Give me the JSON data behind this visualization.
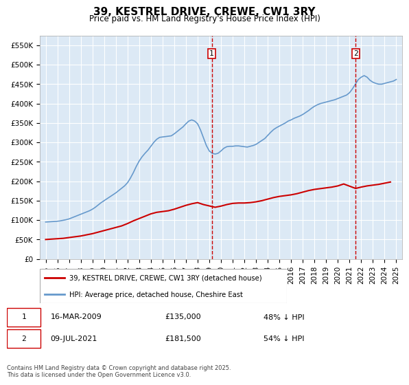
{
  "title": "39, KESTREL DRIVE, CREWE, CW1 3RY",
  "subtitle": "Price paid vs. HM Land Registry's House Price Index (HPI)",
  "ylabel": "",
  "xlabel": "",
  "ylim": [
    0,
    575000
  ],
  "yticks": [
    0,
    50000,
    100000,
    150000,
    200000,
    250000,
    300000,
    350000,
    400000,
    450000,
    500000,
    550000
  ],
  "ytick_labels": [
    "£0",
    "£50K",
    "£100K",
    "£150K",
    "£200K",
    "£250K",
    "£300K",
    "£350K",
    "£400K",
    "£450K",
    "£500K",
    "£550K"
  ],
  "background_color": "#ffffff",
  "plot_bg_color": "#dce9f5",
  "grid_color": "#ffffff",
  "legend1_label": "39, KESTREL DRIVE, CREWE, CW1 3RY (detached house)",
  "legend2_label": "HPI: Average price, detached house, Cheshire East",
  "red_line_color": "#cc0000",
  "blue_line_color": "#6699cc",
  "marker1_date_x": 2009.21,
  "marker1_label": "16-MAR-2009",
  "marker1_price": "£135,000",
  "marker1_hpi": "48% ↓ HPI",
  "marker2_date_x": 2021.52,
  "marker2_label": "09-JUL-2021",
  "marker2_price": "£181,500",
  "marker2_hpi": "54% ↓ HPI",
  "footer": "Contains HM Land Registry data © Crown copyright and database right 2025.\nThis data is licensed under the Open Government Licence v3.0.",
  "hpi_years": [
    1995,
    1995.25,
    1995.5,
    1995.75,
    1996,
    1996.25,
    1996.5,
    1996.75,
    1997,
    1997.25,
    1997.5,
    1997.75,
    1998,
    1998.25,
    1998.5,
    1998.75,
    1999,
    1999.25,
    1999.5,
    1999.75,
    2000,
    2000.25,
    2000.5,
    2000.75,
    2001,
    2001.25,
    2001.5,
    2001.75,
    2002,
    2002.25,
    2002.5,
    2002.75,
    2003,
    2003.25,
    2003.5,
    2003.75,
    2004,
    2004.25,
    2004.5,
    2004.75,
    2005,
    2005.25,
    2005.5,
    2005.75,
    2006,
    2006.25,
    2006.5,
    2006.75,
    2007,
    2007.25,
    2007.5,
    2007.75,
    2008,
    2008.25,
    2008.5,
    2008.75,
    2009,
    2009.25,
    2009.5,
    2009.75,
    2010,
    2010.25,
    2010.5,
    2010.75,
    2011,
    2011.25,
    2011.5,
    2011.75,
    2012,
    2012.25,
    2012.5,
    2012.75,
    2013,
    2013.25,
    2013.5,
    2013.75,
    2014,
    2014.25,
    2014.5,
    2014.75,
    2015,
    2015.25,
    2015.5,
    2015.75,
    2016,
    2016.25,
    2016.5,
    2016.75,
    2017,
    2017.25,
    2017.5,
    2017.75,
    2018,
    2018.25,
    2018.5,
    2018.75,
    2019,
    2019.25,
    2019.5,
    2019.75,
    2020,
    2020.25,
    2020.5,
    2020.75,
    2021,
    2021.25,
    2021.5,
    2021.75,
    2022,
    2022.25,
    2022.5,
    2022.75,
    2023,
    2023.25,
    2023.5,
    2023.75,
    2024,
    2024.25,
    2024.5,
    2024.75,
    2025
  ],
  "hpi_values": [
    95000,
    95500,
    96000,
    96500,
    97000,
    98000,
    99500,
    101000,
    103000,
    106000,
    109000,
    112000,
    115000,
    118000,
    121000,
    124000,
    128000,
    133000,
    139000,
    145000,
    150000,
    155000,
    160000,
    165000,
    170000,
    176000,
    182000,
    188000,
    196000,
    208000,
    222000,
    238000,
    252000,
    263000,
    272000,
    280000,
    290000,
    300000,
    308000,
    313000,
    314000,
    315000,
    316000,
    317000,
    322000,
    328000,
    334000,
    340000,
    348000,
    355000,
    358000,
    355000,
    348000,
    332000,
    312000,
    292000,
    278000,
    272000,
    270000,
    272000,
    278000,
    285000,
    289000,
    290000,
    290000,
    291000,
    291000,
    290000,
    289000,
    288000,
    290000,
    292000,
    295000,
    300000,
    305000,
    310000,
    318000,
    326000,
    333000,
    338000,
    342000,
    346000,
    350000,
    355000,
    358000,
    362000,
    365000,
    368000,
    372000,
    377000,
    382000,
    388000,
    393000,
    397000,
    400000,
    402000,
    404000,
    406000,
    408000,
    410000,
    413000,
    416000,
    419000,
    422000,
    428000,
    438000,
    450000,
    462000,
    468000,
    472000,
    468000,
    460000,
    455000,
    452000,
    450000,
    450000,
    452000,
    454000,
    456000,
    458000,
    462000,
    466000,
    470000
  ],
  "red_years": [
    1995,
    1995.5,
    1996,
    1996.5,
    1997,
    1997.5,
    1998,
    1998.5,
    1999,
    1999.5,
    2000,
    2000.5,
    2001,
    2001.5,
    2002,
    2002.5,
    2003,
    2003.5,
    2004,
    2004.5,
    2005,
    2005.5,
    2006,
    2006.5,
    2007,
    2007.5,
    2008,
    2008.5,
    2009.21,
    2009.5,
    2010,
    2010.5,
    2011,
    2011.5,
    2012,
    2012.5,
    2013,
    2013.5,
    2014,
    2014.5,
    2015,
    2015.5,
    2016,
    2016.5,
    2017,
    2017.5,
    2018,
    2018.5,
    2019,
    2019.5,
    2020,
    2020.5,
    2021.52,
    2022,
    2022.5,
    2023,
    2023.5,
    2024,
    2024.5
  ],
  "red_values": [
    50000,
    51000,
    52000,
    53000,
    55000,
    57000,
    59000,
    62000,
    65000,
    69000,
    73000,
    77000,
    81000,
    85000,
    91000,
    98000,
    104000,
    110000,
    116000,
    120000,
    122000,
    124000,
    128000,
    133000,
    138000,
    142000,
    145000,
    140000,
    135000,
    133000,
    136000,
    140000,
    143000,
    144000,
    144000,
    145000,
    147000,
    150000,
    154000,
    158000,
    161000,
    163000,
    165000,
    168000,
    172000,
    176000,
    179000,
    181000,
    183000,
    185000,
    188000,
    193000,
    181500,
    185000,
    188000,
    190000,
    192000,
    195000,
    198000
  ],
  "xlim": [
    1994.5,
    2025.5
  ],
  "xtick_years": [
    1995,
    1996,
    1997,
    1998,
    1999,
    2000,
    2001,
    2002,
    2003,
    2004,
    2005,
    2006,
    2007,
    2008,
    2009,
    2010,
    2011,
    2012,
    2013,
    2014,
    2015,
    2016,
    2017,
    2018,
    2019,
    2020,
    2021,
    2022,
    2023,
    2024,
    2025
  ]
}
